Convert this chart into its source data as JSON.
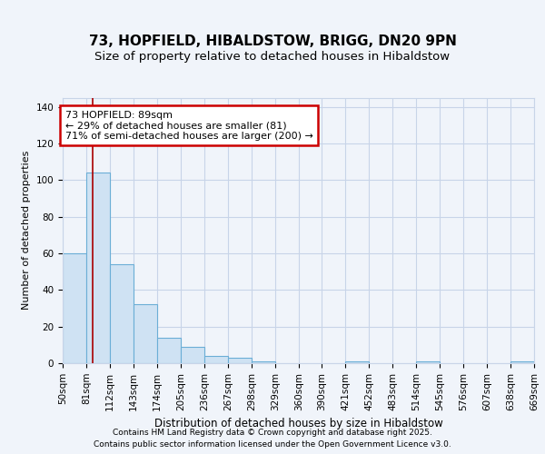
{
  "title1": "73, HOPFIELD, HIBALDSTOW, BRIGG, DN20 9PN",
  "title2": "Size of property relative to detached houses in Hibaldstow",
  "xlabel": "Distribution of detached houses by size in Hibaldstow",
  "ylabel": "Number of detached properties",
  "bin_edges": [
    50,
    81,
    112,
    143,
    174,
    205,
    236,
    267,
    298,
    329,
    360,
    390,
    421,
    452,
    483,
    514,
    545,
    576,
    607,
    638,
    669
  ],
  "bar_heights": [
    60,
    104,
    54,
    32,
    14,
    9,
    4,
    3,
    1,
    0,
    0,
    0,
    1,
    0,
    0,
    1,
    0,
    0,
    0,
    1
  ],
  "bar_color": "#cfe2f3",
  "bar_edge_color": "#6baed6",
  "subject_size": 89,
  "subject_line_color": "#aa0000",
  "annotation_text": "73 HOPFIELD: 89sqm\n← 29% of detached houses are smaller (81)\n71% of semi-detached houses are larger (200) →",
  "annotation_box_color": "#ffffff",
  "annotation_box_edge_color": "#cc0000",
  "grid_color": "#c8d4e8",
  "background_color": "#f0f4fa",
  "plot_bg_color": "#f0f4fa",
  "ylim": [
    0,
    145
  ],
  "yticks": [
    0,
    20,
    40,
    60,
    80,
    100,
    120,
    140
  ],
  "footer1": "Contains HM Land Registry data © Crown copyright and database right 2025.",
  "footer2": "Contains public sector information licensed under the Open Government Licence v3.0.",
  "title1_fontsize": 11,
  "title2_fontsize": 9.5,
  "xlabel_fontsize": 8.5,
  "ylabel_fontsize": 8,
  "tick_fontsize": 7.5,
  "annotation_fontsize": 8,
  "footer_fontsize": 6.5
}
